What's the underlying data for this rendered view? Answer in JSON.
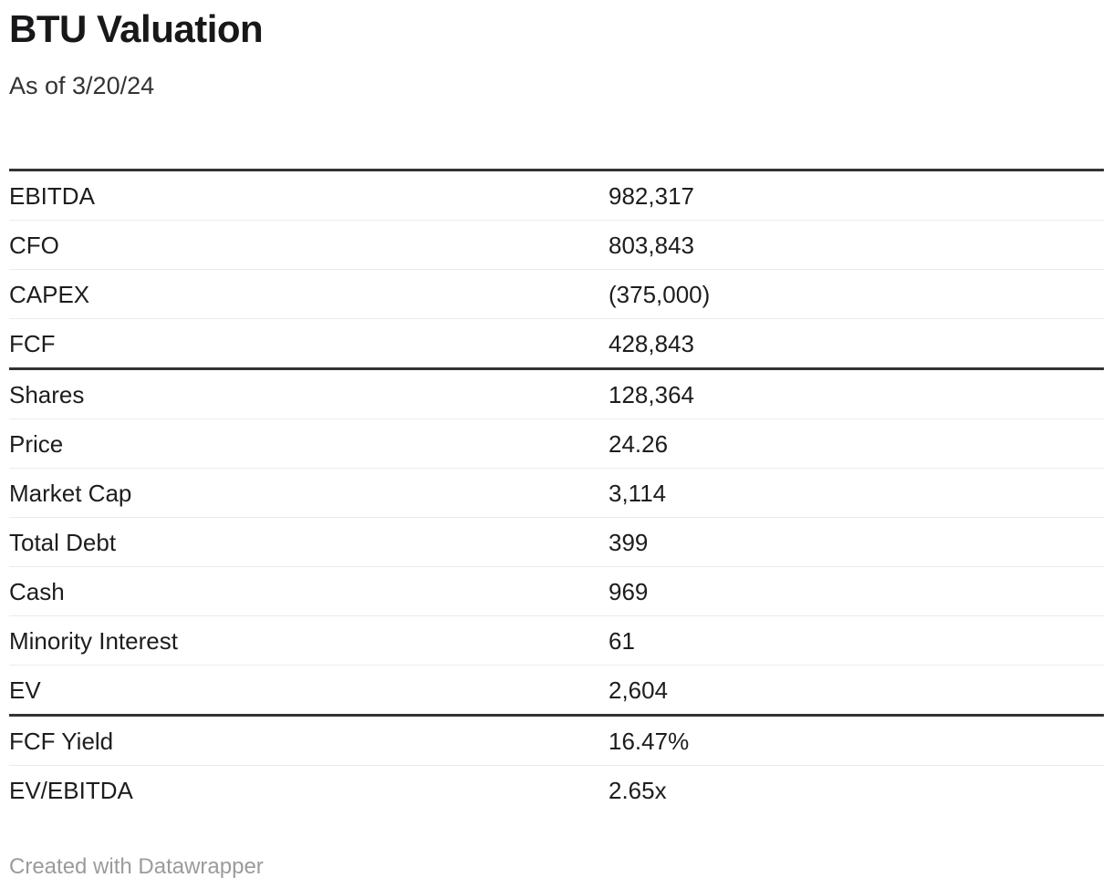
{
  "chart_data": {
    "type": "table",
    "title": "BTU Valuation",
    "subtitle": "As of 3/20/24",
    "sections": [
      {
        "rows": [
          {
            "label": "EBITDA",
            "value": "982,317"
          },
          {
            "label": "CFO",
            "value": "803,843"
          },
          {
            "label": "CAPEX",
            "value": "(375,000)"
          },
          {
            "label": "FCF",
            "value": "428,843"
          }
        ]
      },
      {
        "rows": [
          {
            "label": "Shares",
            "value": "128,364"
          },
          {
            "label": "Price",
            "value": "24.26"
          },
          {
            "label": "Market Cap",
            "value": "3,114"
          },
          {
            "label": "Total Debt",
            "value": "399"
          },
          {
            "label": "Cash",
            "value": "969"
          },
          {
            "label": "Minority Interest",
            "value": "61"
          },
          {
            "label": "EV",
            "value": "2,604"
          }
        ]
      },
      {
        "rows": [
          {
            "label": "FCF Yield",
            "value": "16.47%"
          },
          {
            "label": "EV/EBITDA",
            "value": "2.65x"
          }
        ]
      }
    ],
    "layout_hints": {
      "grid": "horizontal-rules-only",
      "column_headers_visible": false,
      "section_separator": "thick-rule"
    }
  },
  "footer": {
    "attribution": "Created with Datawrapper"
  },
  "colors": {
    "background": "#ffffff",
    "text": "#1d1d1d",
    "title_text": "#18181a",
    "border_strong": "#333333",
    "border_light": "#ebebeb",
    "footer_muted": "#9b9b9b"
  }
}
